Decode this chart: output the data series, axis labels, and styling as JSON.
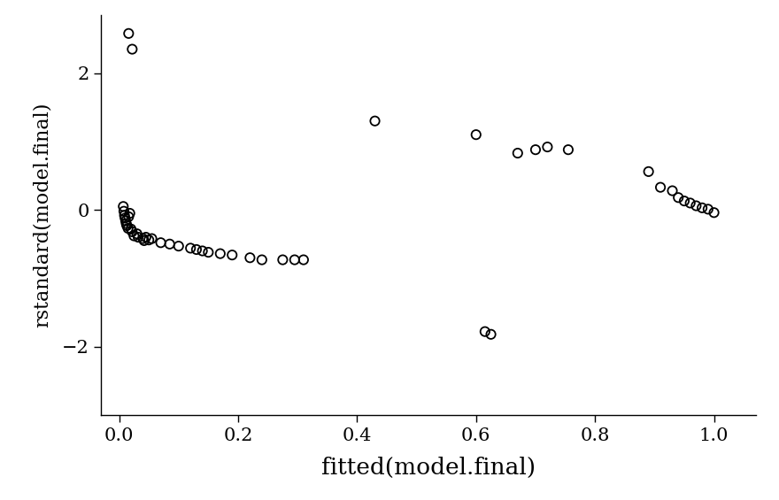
{
  "x": [
    0.007,
    0.008,
    0.009,
    0.01,
    0.011,
    0.012,
    0.013,
    0.015,
    0.016,
    0.018,
    0.02,
    0.022,
    0.025,
    0.03,
    0.032,
    0.04,
    0.042,
    0.045,
    0.05,
    0.055,
    0.07,
    0.085,
    0.1,
    0.12,
    0.13,
    0.14,
    0.15,
    0.17,
    0.19,
    0.22,
    0.24,
    0.275,
    0.295,
    0.31,
    0.43,
    0.6,
    0.615,
    0.625,
    0.67,
    0.7,
    0.72,
    0.755,
    0.89,
    0.91,
    0.93,
    0.94,
    0.95,
    0.96,
    0.97,
    0.98,
    0.99,
    1.0
  ],
  "y": [
    0.05,
    -0.02,
    -0.08,
    -0.12,
    -0.16,
    -0.2,
    -0.23,
    -0.27,
    -0.1,
    -0.05,
    -0.28,
    -0.32,
    -0.38,
    -0.35,
    -0.4,
    -0.42,
    -0.45,
    -0.4,
    -0.44,
    -0.42,
    -0.48,
    -0.5,
    -0.53,
    -0.56,
    -0.58,
    -0.6,
    -0.62,
    -0.64,
    -0.66,
    -0.7,
    -0.73,
    -0.73,
    -0.73,
    -0.73,
    1.3,
    1.1,
    -1.78,
    -1.82,
    0.83,
    0.88,
    0.92,
    0.88,
    0.56,
    0.33,
    0.28,
    0.18,
    0.13,
    0.1,
    0.06,
    0.03,
    0.01,
    -0.04
  ],
  "top_points_x": [
    0.016,
    0.022
  ],
  "top_points_y": [
    2.58,
    2.35
  ],
  "xlabel": "fitted(model.final)",
  "ylabel": "rstandard(model.final)",
  "xlim": [
    -0.03,
    1.07
  ],
  "ylim": [
    -3.0,
    2.85
  ],
  "xticks": [
    0.0,
    0.2,
    0.4,
    0.6,
    0.8,
    1.0
  ],
  "yticks": [
    -2,
    0,
    2
  ],
  "bg_color": "#ffffff",
  "marker_color": "black",
  "marker_size": 55,
  "marker_linewidth": 1.3,
  "xlabel_fontsize": 19,
  "ylabel_fontsize": 16,
  "tick_fontsize": 15
}
